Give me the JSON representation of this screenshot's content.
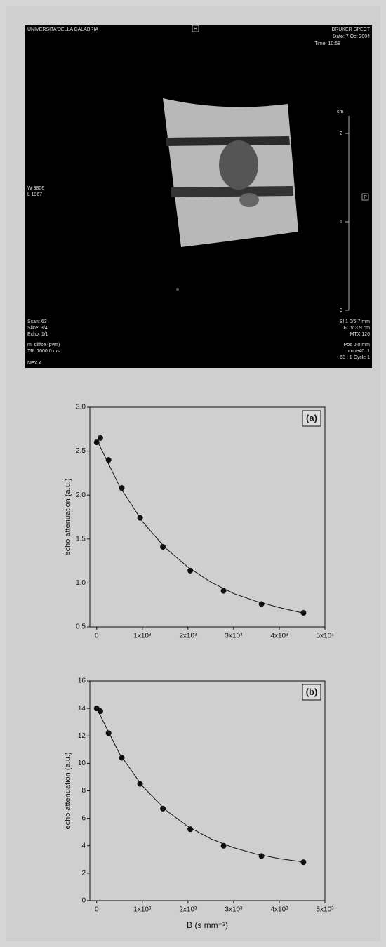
{
  "image": {
    "texts": [
      "UNIVERSITA'DELLA CALABRIA",
      "H",
      "BRUKER SPECT",
      "Date:  7 Oct 2004",
      "Time: 10:58",
      "cm",
      "2",
      "W 3806",
      "L 1967",
      "P",
      "1",
      "0",
      "Scan: 63",
      "Slice: 3/4",
      "Echo: 1/1",
      "m_diffse (pvm)",
      "TR: 1000.0 ms",
      "NEX 4",
      "Sl 1 0/6.7 mm",
      "FOV  3.9 cm",
      "MTX 126",
      "Pos 0.0 mm",
      "probe40: 1",
      ", 63 : 1 Cycle  1"
    ]
  },
  "chart_data": [
    {
      "type": "scatter",
      "annotation": "(a)",
      "ylabel": "echo attenuation  (a.u.)",
      "xlim": [
        -150,
        5000
      ],
      "ylim": [
        0.5,
        3.0
      ],
      "xticks": [
        0,
        {
          "value": 1000,
          "label": "1x10³"
        },
        {
          "value": 2000,
          "label": "2x10³"
        },
        {
          "value": 3000,
          "label": "3x10³"
        },
        {
          "value": 4000,
          "label": "4x10³"
        },
        {
          "value": 5000,
          "label": "5x10³"
        }
      ],
      "yticks": [
        0.5,
        {
          "value": 1,
          "label": "1.0"
        },
        1.5,
        {
          "value": 2,
          "label": "2.0"
        },
        2.5,
        {
          "value": 3,
          "label": "3.0"
        }
      ],
      "series": [
        {
          "style": "markers",
          "color": "#111111",
          "x": [
            0,
            80,
            260,
            550,
            950,
            1450,
            2050,
            2780,
            3610,
            4530
          ],
          "values": [
            2.6,
            2.65,
            2.4,
            2.08,
            1.74,
            1.41,
            1.14,
            0.91,
            0.76,
            0.66
          ]
        },
        {
          "style": "line",
          "color": "#111111",
          "x": [
            0,
            500,
            1000,
            1500,
            2000,
            2500,
            3000,
            3500,
            4000,
            4500
          ],
          "values": [
            2.63,
            2.1,
            1.7,
            1.4,
            1.18,
            1.01,
            0.88,
            0.79,
            0.72,
            0.66
          ]
        }
      ]
    },
    {
      "type": "scatter",
      "annotation": "(b)",
      "ylabel": "echo attenuation  (a.u.)",
      "xlabel": "B  (s mm⁻²)",
      "xlim": [
        -150,
        5000
      ],
      "ylim": [
        0,
        16
      ],
      "xticks": [
        0,
        {
          "value": 1000,
          "label": "1x10³"
        },
        {
          "value": 2000,
          "label": "2x10³"
        },
        {
          "value": 3000,
          "label": "3x10³"
        },
        {
          "value": 4000,
          "label": "4x10³"
        },
        {
          "value": 5000,
          "label": "5x10³"
        }
      ],
      "yticks": [
        0,
        2,
        4,
        6,
        8,
        10,
        12,
        14,
        16
      ],
      "series": [
        {
          "style": "markers",
          "color": "#111111",
          "x": [
            0,
            80,
            260,
            550,
            950,
            1450,
            2050,
            2780,
            3610,
            4530
          ],
          "values": [
            14.0,
            13.8,
            12.2,
            10.4,
            8.5,
            6.7,
            5.2,
            4.0,
            3.25,
            2.8
          ]
        },
        {
          "style": "line",
          "color": "#111111",
          "x": [
            0,
            500,
            1000,
            1500,
            2000,
            2500,
            3000,
            3500,
            4000,
            4500
          ],
          "values": [
            14.0,
            10.7,
            8.35,
            6.63,
            5.4,
            4.5,
            3.86,
            3.39,
            3.06,
            2.83
          ]
        }
      ]
    }
  ]
}
